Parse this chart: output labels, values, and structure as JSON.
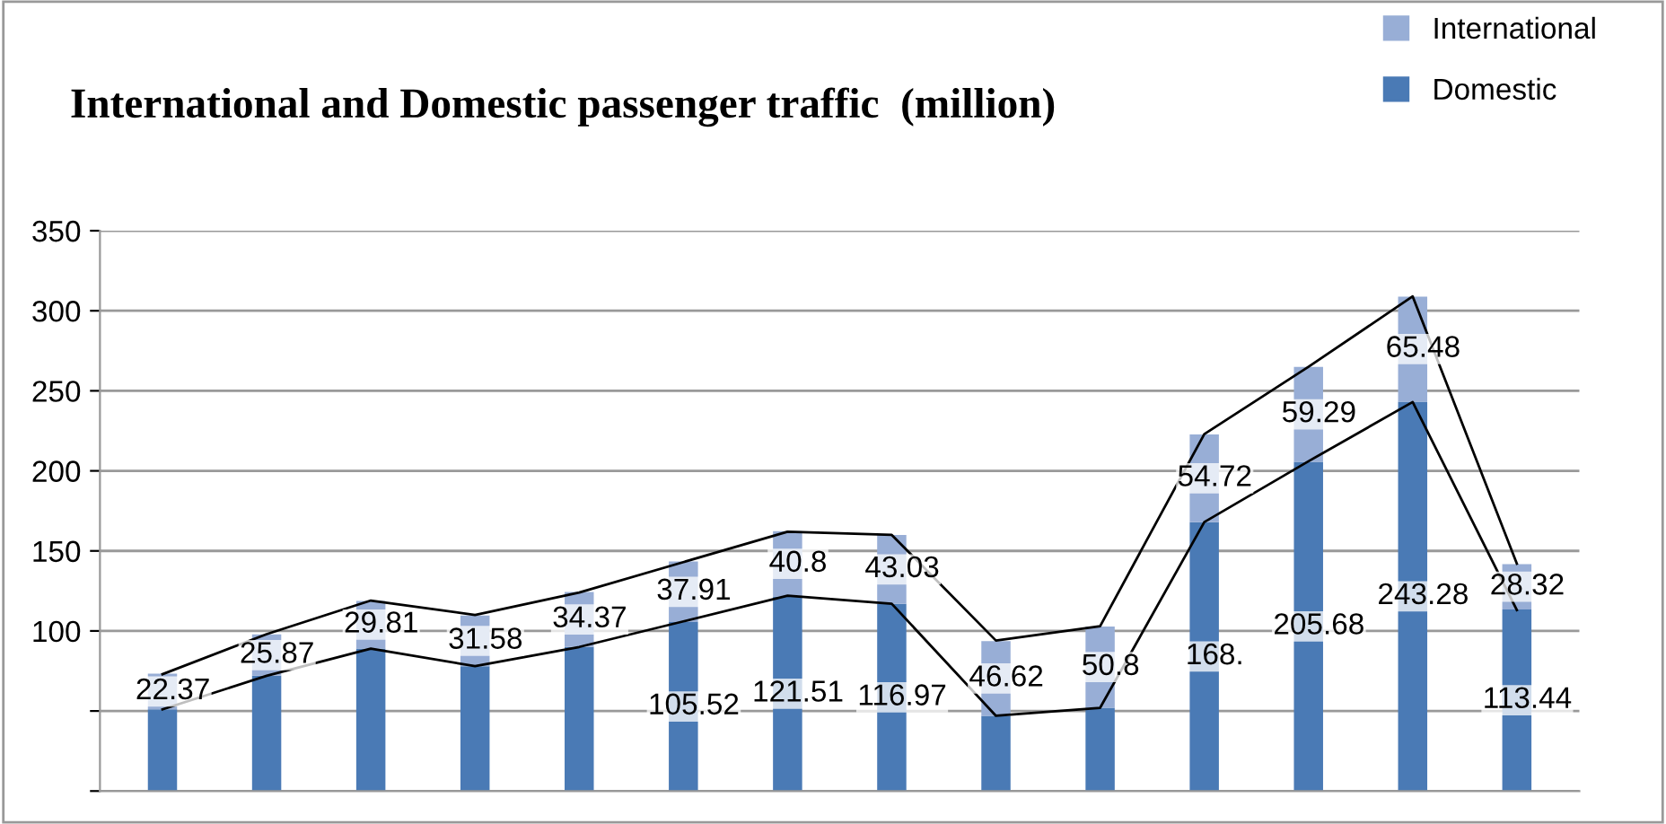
{
  "chart_data": {
    "type": "bar",
    "title": "International and Domestic passenger traffic  (million)",
    "categories": [
      null,
      null,
      null,
      null,
      null,
      null,
      null,
      null,
      null,
      null,
      null,
      null,
      null,
      null
    ],
    "stacked": true,
    "series": [
      {
        "name": "Domestic",
        "color": "#4a7ab5",
        "values": [
          51,
          72,
          89,
          78,
          90,
          105.52,
          121.51,
          116.97,
          47,
          52,
          168,
          205.68,
          243.28,
          113.44
        ],
        "value_labels": [
          null,
          null,
          null,
          null,
          null,
          "105.52",
          "121.51",
          "116.97",
          null,
          null,
          "168.",
          "205.68",
          "243.28",
          "113.44"
        ]
      },
      {
        "name": "International",
        "color": "#98aed6",
        "values": [
          22.37,
          25.87,
          29.81,
          31.58,
          34.37,
          37.91,
          40.8,
          43.03,
          46.62,
          50.8,
          54.72,
          59.29,
          65.48,
          28.32
        ],
        "value_labels": [
          "22.37",
          "25.87",
          "29.81",
          "31.58",
          "34.37",
          "37.91",
          "40.8",
          "43.03",
          "46.62",
          "50.8",
          "54.72",
          "59.29",
          "65.48",
          "28.32"
        ]
      },
      {
        "type": "line",
        "color": "#000000",
        "values": [
          51,
          72,
          89,
          78,
          90,
          106,
          122,
          117,
          47,
          52,
          168,
          206,
          243,
          113
        ]
      },
      {
        "type": "line",
        "color": "#000000",
        "values": [
          73,
          98,
          119,
          110,
          124,
          143,
          162,
          160,
          94,
          103,
          223,
          265,
          309,
          142
        ]
      }
    ],
    "ylim": [
      0,
      350
    ],
    "yticks": [
      {
        "value": 0,
        "label": null
      },
      {
        "value": 50,
        "label": null
      },
      100,
      150,
      200,
      250,
      300,
      350
    ],
    "grid": "y",
    "legend": "top right",
    "tick_labels": "y"
  }
}
